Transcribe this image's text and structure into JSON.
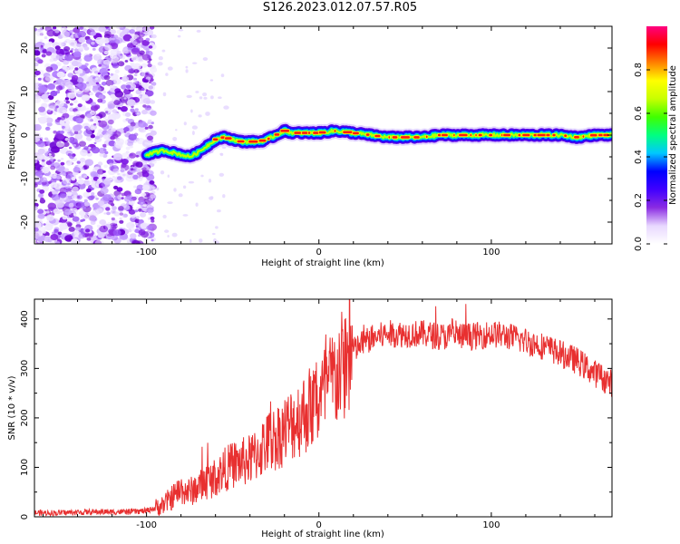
{
  "title": "S126.2023.012.07.57.R05",
  "chart_data": [
    {
      "type": "heatmap",
      "xlabel": "Height of straight line (km)",
      "ylabel": "Frequency (Hz)",
      "xlim": [
        -165,
        170
      ],
      "ylim": [
        -25,
        25
      ],
      "xticks": [
        -100,
        0,
        100
      ],
      "yticks": [
        -20,
        -10,
        0,
        10,
        20
      ],
      "xtick_labels": [
        "-100",
        "0",
        "100"
      ],
      "ytick_labels": [
        "-20",
        "-10",
        "0",
        "10",
        "20"
      ],
      "ridge": {
        "x": [
          -100,
          -95,
          -90,
          -85,
          -80,
          -75,
          -70,
          -65,
          -60,
          -55,
          -50,
          -45,
          -40,
          -35,
          -30,
          -25,
          -20,
          -15,
          -10,
          -5,
          0,
          10,
          20,
          30,
          40,
          50,
          60,
          70,
          80,
          90,
          100,
          110,
          120,
          130,
          140,
          150,
          160,
          170
        ],
        "y": [
          -4.5,
          -4.0,
          -3.5,
          -4.0,
          -4.5,
          -5.0,
          -4.0,
          -2.5,
          -1.0,
          -0.5,
          -1.0,
          -1.5,
          -1.5,
          -1.5,
          -1.0,
          0.0,
          1.0,
          0.5,
          0.5,
          0.5,
          0.5,
          1.0,
          0.5,
          0.0,
          -0.5,
          -0.5,
          -0.5,
          0.0,
          0.0,
          0.0,
          0.0,
          0.0,
          0.0,
          0.0,
          0.0,
          -0.5,
          0.0,
          0.0
        ]
      },
      "noise_region_x": [
        -165,
        -100
      ],
      "colorbar": {
        "label": "Normalized spectral amplitude",
        "range": [
          0.0,
          1.0
        ],
        "ticks": [
          0.0,
          0.2,
          0.4,
          0.6,
          0.8
        ],
        "tick_labels": [
          "0.0",
          "0.2",
          "0.4",
          "0.6",
          "0.8"
        ],
        "colors": [
          "#ffffff",
          "#e8d8ff",
          "#8a2be2",
          "#4000ff",
          "#0000ff",
          "#00c8ff",
          "#00ff80",
          "#40ff00",
          "#c8ff00",
          "#ffff00",
          "#ff8000",
          "#ff0000",
          "#ff0080"
        ]
      }
    },
    {
      "type": "line",
      "xlabel": "Height of straight line (km)",
      "ylabel": "SNR (10 * v/v)",
      "xlim": [
        -165,
        170
      ],
      "ylim": [
        0,
        440
      ],
      "xticks": [
        -100,
        0,
        100
      ],
      "yticks": [
        0,
        100,
        200,
        300,
        400
      ],
      "xtick_labels": [
        "-100",
        "0",
        "100"
      ],
      "ytick_labels": [
        "0",
        "100",
        "200",
        "300",
        "400"
      ],
      "color": "#e83030",
      "series": [
        {
          "x": [
            -165,
            -150,
            -130,
            -110,
            -100,
            -95,
            -90,
            -85,
            -80,
            -75,
            -70,
            -65,
            -60,
            -55,
            -50,
            -45,
            -40,
            -35,
            -30,
            -25,
            -20,
            -15,
            -10,
            -5,
            0,
            5,
            10,
            15,
            20,
            25,
            30,
            40,
            50,
            60,
            70,
            80,
            90,
            100,
            110,
            120,
            130,
            140,
            150,
            160,
            170
          ],
          "values": [
            8,
            8,
            10,
            10,
            12,
            18,
            25,
            40,
            55,
            50,
            60,
            70,
            80,
            95,
            105,
            110,
            115,
            130,
            150,
            160,
            175,
            190,
            205,
            220,
            235,
            260,
            285,
            310,
            335,
            350,
            360,
            370,
            370,
            370,
            365,
            365,
            365,
            370,
            365,
            355,
            345,
            330,
            315,
            290,
            270
          ]
        }
      ]
    }
  ]
}
